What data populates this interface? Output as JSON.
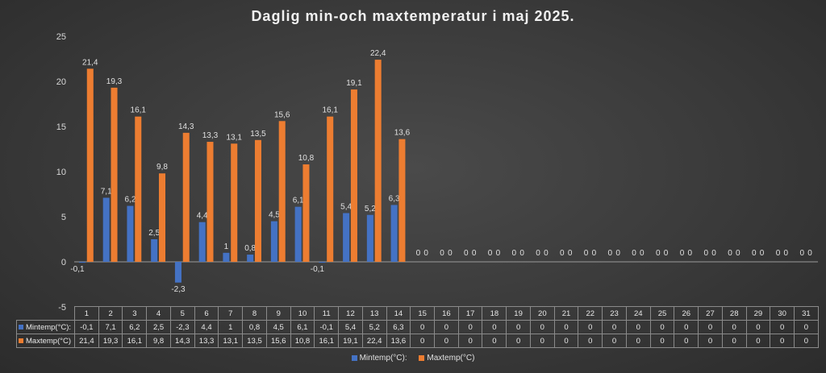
{
  "chart_data": {
    "type": "bar",
    "title": "Daglig min-och maxtemperatur i maj 2025.",
    "categories": [
      "1",
      "2",
      "3",
      "4",
      "5",
      "6",
      "7",
      "8",
      "9",
      "10",
      "11",
      "12",
      "13",
      "14",
      "15",
      "16",
      "17",
      "18",
      "19",
      "20",
      "21",
      "22",
      "23",
      "24",
      "25",
      "26",
      "27",
      "28",
      "29",
      "30",
      "31"
    ],
    "series": [
      {
        "name": "Mintemp(°C):",
        "color": "#4472c4",
        "values": [
          -0.1,
          7.1,
          6.2,
          2.5,
          -2.3,
          4.4,
          1,
          0.8,
          4.5,
          6.1,
          -0.1,
          5.4,
          5.2,
          6.3,
          0,
          0,
          0,
          0,
          0,
          0,
          0,
          0,
          0,
          0,
          0,
          0,
          0,
          0,
          0,
          0,
          0
        ],
        "labels": [
          "-0,1",
          "7,1",
          "6,2",
          "2,5",
          "-2,3",
          "4,4",
          "1",
          "0,8",
          "4,5",
          "6,1",
          "-0,1",
          "5,4",
          "5,2",
          "6,3",
          "0",
          "0",
          "0",
          "0",
          "0",
          "0",
          "0",
          "0",
          "0",
          "0",
          "0",
          "0",
          "0",
          "0",
          "0",
          "0",
          "0"
        ]
      },
      {
        "name": "Maxtemp(°C)",
        "color": "#ed7d31",
        "values": [
          21.4,
          19.3,
          16.1,
          9.8,
          14.3,
          13.3,
          13.1,
          13.5,
          15.6,
          10.8,
          16.1,
          19.1,
          22.4,
          13.6,
          0,
          0,
          0,
          0,
          0,
          0,
          0,
          0,
          0,
          0,
          0,
          0,
          0,
          0,
          0,
          0,
          0
        ],
        "labels": [
          "21,4",
          "19,3",
          "16,1",
          "9,8",
          "14,3",
          "13,3",
          "13,1",
          "13,5",
          "15,6",
          "10,8",
          "16,1",
          "19,1",
          "22,4",
          "13,6",
          "0",
          "0",
          "0",
          "0",
          "0",
          "0",
          "0",
          "0",
          "0",
          "0",
          "0",
          "0",
          "0",
          "0",
          "0",
          "0",
          "0"
        ]
      }
    ],
    "table_row_labels": [
      "Mintemp(°C):",
      "Maxtemp(°C)"
    ],
    "legend_labels": [
      "Mintemp(°C):",
      "Maxtemp(°C)"
    ],
    "ylim": [
      -5,
      25
    ],
    "yticks": [
      "-5",
      "0",
      "5",
      "10",
      "15",
      "20",
      "25"
    ],
    "grid": false,
    "legend_position": "bottom",
    "data_table": true
  }
}
